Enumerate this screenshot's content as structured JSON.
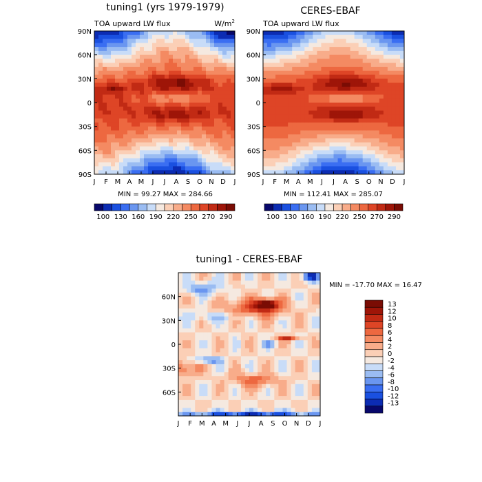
{
  "panels": {
    "model": {
      "title": "tuning1 (yrs 1979-1979)",
      "subtitle": "TOA upward LW flux",
      "units_base": "W/m",
      "units_exp": "2",
      "stats": "MIN =  99.27 MAX = 284.66"
    },
    "obs": {
      "title": "CERES-EBAF",
      "subtitle": "TOA upward LW flux",
      "stats": "MIN = 112.41 MAX = 285.07"
    },
    "diff": {
      "title": "tuning1 - CERES-EBAF",
      "stats": "MIN = -17.70 MAX =  16.47"
    }
  },
  "colors": {
    "flux_palette": [
      "#08086b",
      "#0c2cb3",
      "#1a50e0",
      "#3a6ef2",
      "#6a96f0",
      "#9abcf2",
      "#c8dcf8",
      "#f5e9e0",
      "#fbcfb6",
      "#f8ac8a",
      "#f48a62",
      "#ed6840",
      "#de4526",
      "#c12a14",
      "#9e1508",
      "#7a0c04"
    ],
    "diff_palette": [
      "#08086b",
      "#0c2cb3",
      "#1a50e0",
      "#3a6ef2",
      "#6a96f0",
      "#9abcf2",
      "#c8dcf8",
      "#f5e9e0",
      "#fbcfb6",
      "#f8ac8a",
      "#f48a62",
      "#ed6840",
      "#de4526",
      "#c12a14",
      "#9e1508",
      "#7a0c04"
    ]
  },
  "chart_data": [
    {
      "type": "heatmap",
      "title": "tuning1 (yrs 1979-1979)",
      "subtitle": "TOA upward LW flux",
      "units": "W/m2",
      "x_tick_labels": [
        "J",
        "F",
        "M",
        "A",
        "M",
        "J",
        "J",
        "A",
        "S",
        "O",
        "N",
        "D",
        "J"
      ],
      "y_tick_labels": [
        "90N",
        "60N",
        "30N",
        "0",
        "30S",
        "60S",
        "90S"
      ],
      "xlim": [
        0,
        12
      ],
      "ylim": [
        -90,
        90
      ],
      "colorbar_labels": [
        "100",
        "130",
        "160",
        "190",
        "220",
        "250",
        "270",
        "290"
      ],
      "min": 99.27,
      "max": 284.66
    },
    {
      "type": "heatmap",
      "title": "CERES-EBAF",
      "subtitle": "TOA upward LW flux",
      "units": "W/m2",
      "x_tick_labels": [
        "J",
        "F",
        "M",
        "A",
        "M",
        "J",
        "J",
        "A",
        "S",
        "O",
        "N",
        "D",
        "J"
      ],
      "y_tick_labels": [
        "90N",
        "60N",
        "30N",
        "0",
        "30S",
        "60S",
        "90S"
      ],
      "xlim": [
        0,
        12
      ],
      "ylim": [
        -90,
        90
      ],
      "colorbar_labels": [
        "100",
        "130",
        "160",
        "190",
        "220",
        "250",
        "270",
        "290"
      ],
      "min": 112.41,
      "max": 285.07
    },
    {
      "type": "heatmap",
      "title": "tuning1 - CERES-EBAF",
      "x_tick_labels": [
        "J",
        "F",
        "M",
        "A",
        "M",
        "J",
        "J",
        "A",
        "S",
        "O",
        "N",
        "D",
        "J"
      ],
      "y_tick_labels": [
        "60N",
        "30N",
        "0",
        "30S",
        "60S"
      ],
      "xlim": [
        0,
        12
      ],
      "ylim": [
        -90,
        90
      ],
      "colorbar_labels": [
        "13",
        "12",
        "10",
        "8",
        "6",
        "4",
        "2",
        "0",
        "-2",
        "-4",
        "-6",
        "-8",
        "-10",
        "-12",
        "-13"
      ],
      "min": -17.7,
      "max": 16.47
    }
  ]
}
